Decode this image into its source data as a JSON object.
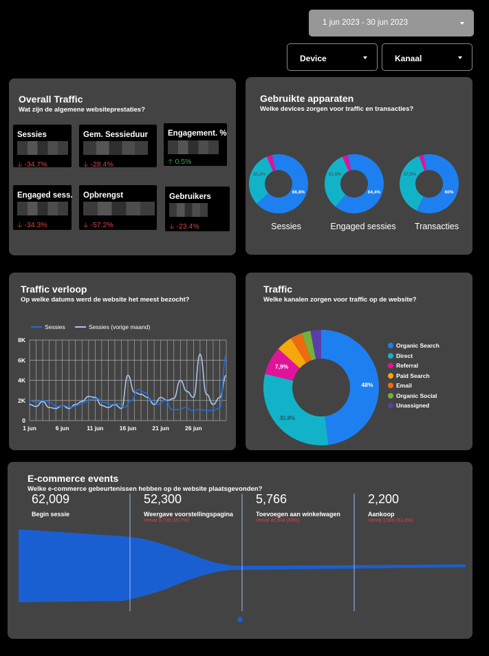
{
  "controls": {
    "date_range": "1 jun 2023 - 30 jun 2023",
    "device": "Device",
    "kanaal": "Kanaal"
  },
  "overall": {
    "title": "Overall Traffic",
    "subtitle": "Wat zijn de algemene websiteprestaties?",
    "kpis": [
      {
        "label": "Sessies",
        "delta": "-34.7%",
        "trend": "down"
      },
      {
        "label": "Gem. Sessieduur",
        "delta": "-28.4%",
        "trend": "down"
      },
      {
        "label": "Engagement. %",
        "delta": "0.5%",
        "trend": "up"
      },
      {
        "label": "Engaged sess.",
        "delta": "-34.3%",
        "trend": "down"
      },
      {
        "label": "Opbrengst",
        "delta": "-57.2%",
        "trend": "down"
      },
      {
        "label": "Gebruikers",
        "delta": "-23.4%",
        "trend": "down"
      }
    ]
  },
  "devices": {
    "title": "Gebruikte apparaten",
    "subtitle": "Welke devices zorgen voor traffic en transacties?",
    "colors": [
      "#1e7ff0",
      "#12b3c9",
      "#e0139a"
    ],
    "charts": [
      {
        "label": "Sessies",
        "slices": [
          66.8,
          30.2,
          3.0
        ],
        "big_label": "66,8%",
        "small_label": "30,2%"
      },
      {
        "label": "Engaged sessies",
        "slices": [
          64.4,
          32.6,
          3.0
        ],
        "big_label": "64,4%",
        "small_label": "32,6%"
      },
      {
        "label": "Transacties",
        "slices": [
          60,
          37.5,
          2.5
        ],
        "big_label": "60%",
        "small_label": "37,5%"
      }
    ]
  },
  "traffic_verloop": {
    "title": "Traffic verloop",
    "subtitle": "Op welke datums werd de website het meest bezocht?"
  },
  "traffic": {
    "title": "Traffic",
    "subtitle": "Welke kanalen zorgen voor traffic op de website?"
  },
  "ecommerce": {
    "title": "E-commerce events",
    "subtitle": "Welke e-commerce gebeurtenissen hebben op de website plaatsgevonden?",
    "steps": [
      {
        "value": "62,009",
        "name": "Begin sessie",
        "drop": ""
      },
      {
        "value": "52,300",
        "name": "Weergave voorstellingspagina",
        "drop": "Verval 9,709 (15.7%)"
      },
      {
        "value": "5,766",
        "name": "Toevoegen aan winkelwagen",
        "drop": "Verval 46,534 (89%)"
      },
      {
        "value": "2,200",
        "name": "Aankoop",
        "drop": "Verval 3,566 (61.8%)"
      }
    ]
  },
  "chart_data": [
    {
      "type": "line",
      "series": [
        {
          "name": "Sessies",
          "color": "#1f6fe0",
          "values": [
            2000,
            1800,
            2000,
            1800,
            1400,
            1500,
            1300,
            1500,
            1800,
            2100,
            2200,
            1800,
            1600,
            1700,
            1300,
            2000,
            3100,
            2800,
            2000,
            1600,
            2000,
            1100,
            1100,
            1300,
            1000,
            1100,
            1000,
            1000,
            1200,
            6500
          ]
        },
        {
          "name": "Sessies (vorige maand)",
          "color": "#a8c7f0",
          "values": [
            1600,
            1400,
            1900,
            1300,
            1200,
            1500,
            1200,
            1600,
            1900,
            2400,
            2300,
            1500,
            1300,
            1600,
            1200,
            4500,
            2800,
            2600,
            2300,
            1600,
            2300,
            2000,
            2200,
            4000,
            2900,
            2300,
            6600,
            2600,
            1600,
            2300,
            4500
          ]
        }
      ],
      "x_ticks": [
        "1 jun",
        "6 jun",
        "11 jun",
        "16 jun",
        "21 jun",
        "26 jun"
      ],
      "y_ticks": [
        "8K",
        "6K",
        "4K",
        "2K",
        "0"
      ],
      "ylim": [
        0,
        8000
      ],
      "grid": true,
      "legend": "top-left"
    },
    {
      "type": "pie",
      "categories": [
        "Organic Search",
        "Direct",
        "Referral",
        "Paid Search",
        "Email",
        "Organic Social",
        "Unassigned"
      ],
      "values": [
        48,
        30.8,
        7.9,
        4.5,
        3.3,
        2.5,
        3.0
      ],
      "colors": [
        "#1e7ff0",
        "#12b3c9",
        "#e0139a",
        "#f6a80b",
        "#ee6a10",
        "#73b13d",
        "#5b3ea8"
      ],
      "slice_labels": [
        "48%",
        "30,8%",
        "7,9%",
        "",
        "",
        "",
        ""
      ],
      "legend": "right"
    }
  ]
}
